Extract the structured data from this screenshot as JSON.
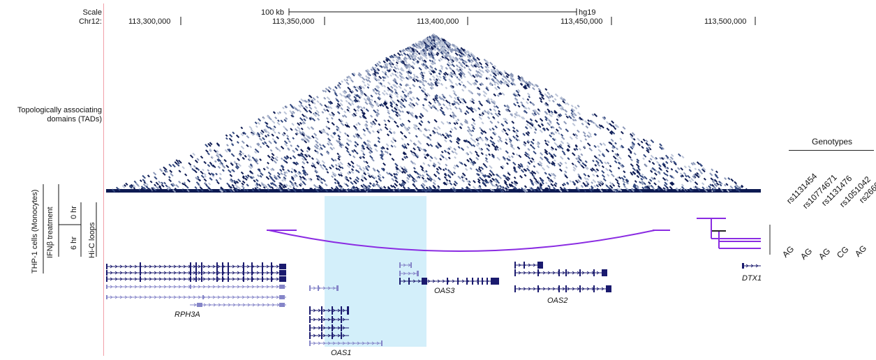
{
  "scale": {
    "scale_label": "Scale",
    "chr_label": "Chr12:",
    "bar_label": "100 kb",
    "assembly": "hg19",
    "ticks": [
      "113,300,000",
      "113,350,000",
      "113,400,000",
      "113,450,000",
      "113,500,000"
    ]
  },
  "tads": {
    "label_line1": "Topologically associating",
    "label_line2": "domains (TADs)"
  },
  "side": {
    "cells": "THP-1 cells (Monocytes)",
    "treatment": "IFNβ treatment",
    "hic": "Hi-C loops",
    "time_0": "0 hr",
    "time_6": "6 hr"
  },
  "genes": [
    "RPH3A",
    "OAS1",
    "OAS3",
    "OAS2",
    "DTX1"
  ],
  "genotypes": {
    "title": "Genotypes",
    "snps": [
      "rs1131454",
      "rs10774671",
      "rs1131476",
      "rs1051042",
      "rs2660"
    ],
    "values": [
      "AG",
      "AG",
      "AG",
      "CG",
      "AG"
    ]
  },
  "colors": {
    "gene": "#1a1a6e",
    "gene_light": "#8585c8",
    "loop": "#8a2be2",
    "highlight": "#d3effa",
    "red_line": "#f2a0a8"
  }
}
